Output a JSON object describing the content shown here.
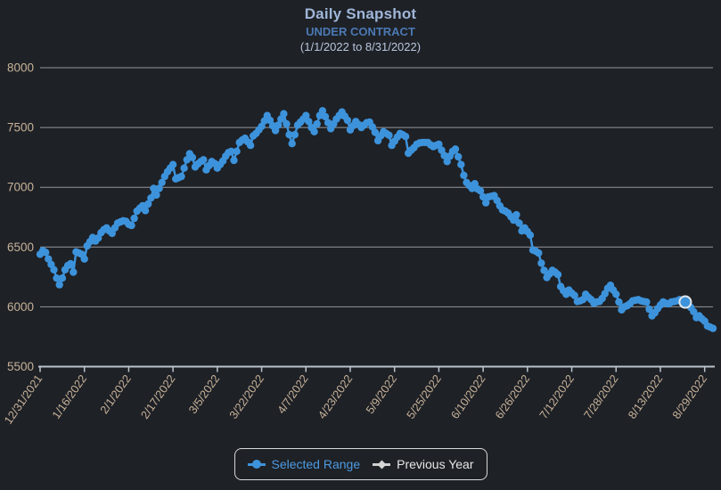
{
  "header": {
    "title": "Daily Snapshot",
    "subtitle": "UNDER CONTRACT",
    "date_range": "(1/1/2022 to 8/31/2022)"
  },
  "legend": {
    "items": [
      {
        "label": "Selected Range",
        "marker": "line-dot-icon",
        "color": "#3d93db"
      },
      {
        "label": "Previous Year",
        "marker": "line-diamond-icon",
        "color": "#d5d5d5"
      }
    ]
  },
  "colors": {
    "background": "#1e2126",
    "series_blue": "#3d93db",
    "grid_line": "#93989d",
    "axis_line": "#bac4cd",
    "tick_label": "#c7b299",
    "title_text": "#9fb6d9",
    "subtitle_text": "#4b79b4",
    "range_text": "#b9c6dc",
    "highlight_ring": "#e3e7ea"
  },
  "chart_data": {
    "type": "line",
    "title": "Daily Snapshot — UNDER CONTRACT",
    "xlabel": "",
    "ylabel": "",
    "ylim": [
      5500,
      8000
    ],
    "y_ticks": [
      5500,
      6000,
      6500,
      7000,
      7500,
      8000
    ],
    "grid": true,
    "legend_position": "bottom",
    "start_date": "12/31/2021",
    "x_tick_interval_days": 16,
    "x_tick_labels": [
      "12/31/2021",
      "1/16/2022",
      "2/1/2022",
      "2/17/2022",
      "3/5/2022",
      "3/22/2022",
      "4/7/2022",
      "4/23/2022",
      "5/9/2022",
      "5/25/2022",
      "6/10/2022",
      "6/26/2022",
      "7/12/2022",
      "7/28/2022",
      "8/13/2022",
      "8/29/2022"
    ],
    "highlight_point": {
      "day": 233,
      "value": 6040
    },
    "series": [
      {
        "name": "Selected Range",
        "color": "#3d93db",
        "points": [
          [
            0,
            6440
          ],
          [
            1,
            6470
          ],
          [
            2,
            6455
          ],
          [
            3,
            6400
          ],
          [
            4,
            6355
          ],
          [
            5,
            6310
          ],
          [
            6,
            6240
          ],
          [
            7,
            6185
          ],
          [
            8,
            6240
          ],
          [
            9,
            6310
          ],
          [
            10,
            6345
          ],
          [
            11,
            6360
          ],
          [
            12,
            6290
          ],
          [
            13,
            6460
          ],
          [
            14,
            6450
          ],
          [
            15,
            6440
          ],
          [
            16,
            6400
          ],
          [
            17,
            6510
          ],
          [
            18,
            6545
          ],
          [
            19,
            6580
          ],
          [
            20,
            6550
          ],
          [
            21,
            6575
          ],
          [
            22,
            6620
          ],
          [
            23,
            6645
          ],
          [
            24,
            6660
          ],
          [
            25,
            6635
          ],
          [
            26,
            6615
          ],
          [
            27,
            6660
          ],
          [
            28,
            6700
          ],
          [
            29,
            6710
          ],
          [
            30,
            6720
          ],
          [
            31,
            6715
          ],
          [
            32,
            6690
          ],
          [
            33,
            6680
          ],
          [
            34,
            6740
          ],
          [
            35,
            6800
          ],
          [
            36,
            6825
          ],
          [
            37,
            6845
          ],
          [
            38,
            6805
          ],
          [
            39,
            6860
          ],
          [
            40,
            6910
          ],
          [
            41,
            6990
          ],
          [
            42,
            6935
          ],
          [
            43,
            6990
          ],
          [
            44,
            7040
          ],
          [
            45,
            7090
          ],
          [
            46,
            7130
          ],
          [
            47,
            7160
          ],
          [
            48,
            7190
          ],
          [
            49,
            7070
          ],
          [
            50,
            7080
          ],
          [
            51,
            7090
          ],
          [
            52,
            7160
          ],
          [
            53,
            7230
          ],
          [
            54,
            7280
          ],
          [
            55,
            7250
          ],
          [
            56,
            7170
          ],
          [
            57,
            7195
          ],
          [
            58,
            7215
          ],
          [
            59,
            7230
          ],
          [
            60,
            7145
          ],
          [
            61,
            7180
          ],
          [
            62,
            7215
          ],
          [
            63,
            7200
          ],
          [
            64,
            7160
          ],
          [
            65,
            7190
          ],
          [
            66,
            7220
          ],
          [
            67,
            7260
          ],
          [
            68,
            7290
          ],
          [
            69,
            7300
          ],
          [
            70,
            7225
          ],
          [
            71,
            7300
          ],
          [
            72,
            7375
          ],
          [
            73,
            7395
          ],
          [
            74,
            7410
          ],
          [
            75,
            7380
          ],
          [
            76,
            7350
          ],
          [
            77,
            7430
          ],
          [
            78,
            7450
          ],
          [
            79,
            7480
          ],
          [
            80,
            7510
          ],
          [
            81,
            7555
          ],
          [
            82,
            7600
          ],
          [
            83,
            7560
          ],
          [
            84,
            7515
          ],
          [
            85,
            7475
          ],
          [
            86,
            7520
          ],
          [
            87,
            7570
          ],
          [
            88,
            7615
          ],
          [
            89,
            7530
          ],
          [
            90,
            7440
          ],
          [
            91,
            7365
          ],
          [
            92,
            7440
          ],
          [
            93,
            7520
          ],
          [
            94,
            7545
          ],
          [
            95,
            7570
          ],
          [
            96,
            7600
          ],
          [
            97,
            7550
          ],
          [
            98,
            7500
          ],
          [
            99,
            7465
          ],
          [
            100,
            7530
          ],
          [
            101,
            7600
          ],
          [
            102,
            7640
          ],
          [
            103,
            7590
          ],
          [
            104,
            7540
          ],
          [
            105,
            7490
          ],
          [
            106,
            7530
          ],
          [
            107,
            7570
          ],
          [
            108,
            7600
          ],
          [
            109,
            7630
          ],
          [
            110,
            7595
          ],
          [
            111,
            7560
          ],
          [
            112,
            7480
          ],
          [
            113,
            7515
          ],
          [
            114,
            7550
          ],
          [
            115,
            7525
          ],
          [
            116,
            7500
          ],
          [
            117,
            7520
          ],
          [
            118,
            7540
          ],
          [
            119,
            7545
          ],
          [
            120,
            7505
          ],
          [
            121,
            7460
          ],
          [
            122,
            7390
          ],
          [
            123,
            7430
          ],
          [
            124,
            7465
          ],
          [
            125,
            7450
          ],
          [
            126,
            7435
          ],
          [
            127,
            7350
          ],
          [
            128,
            7385
          ],
          [
            129,
            7420
          ],
          [
            130,
            7450
          ],
          [
            131,
            7440
          ],
          [
            132,
            7425
          ],
          [
            133,
            7285
          ],
          [
            134,
            7310
          ],
          [
            135,
            7330
          ],
          [
            136,
            7360
          ],
          [
            137,
            7370
          ],
          [
            138,
            7375
          ],
          [
            139,
            7375
          ],
          [
            140,
            7375
          ],
          [
            141,
            7355
          ],
          [
            142,
            7340
          ],
          [
            143,
            7350
          ],
          [
            144,
            7360
          ],
          [
            145,
            7310
          ],
          [
            146,
            7265
          ],
          [
            147,
            7215
          ],
          [
            148,
            7260
          ],
          [
            149,
            7300
          ],
          [
            150,
            7320
          ],
          [
            151,
            7255
          ],
          [
            152,
            7190
          ],
          [
            153,
            7100
          ],
          [
            154,
            7040
          ],
          [
            155,
            7015
          ],
          [
            156,
            6990
          ],
          [
            157,
            7030
          ],
          [
            158,
            6985
          ],
          [
            159,
            6970
          ],
          [
            160,
            6920
          ],
          [
            161,
            6870
          ],
          [
            162,
            6920
          ],
          [
            163,
            6925
          ],
          [
            164,
            6930
          ],
          [
            165,
            6890
          ],
          [
            166,
            6845
          ],
          [
            167,
            6810
          ],
          [
            168,
            6800
          ],
          [
            169,
            6785
          ],
          [
            170,
            6755
          ],
          [
            171,
            6725
          ],
          [
            172,
            6770
          ],
          [
            173,
            6700
          ],
          [
            174,
            6635
          ],
          [
            175,
            6660
          ],
          [
            176,
            6630
          ],
          [
            177,
            6600
          ],
          [
            178,
            6475
          ],
          [
            179,
            6465
          ],
          [
            180,
            6450
          ],
          [
            181,
            6365
          ],
          [
            182,
            6305
          ],
          [
            183,
            6245
          ],
          [
            184,
            6275
          ],
          [
            185,
            6305
          ],
          [
            186,
            6290
          ],
          [
            187,
            6270
          ],
          [
            188,
            6170
          ],
          [
            189,
            6135
          ],
          [
            190,
            6105
          ],
          [
            191,
            6140
          ],
          [
            192,
            6115
          ],
          [
            193,
            6095
          ],
          [
            194,
            6045
          ],
          [
            195,
            6050
          ],
          [
            196,
            6060
          ],
          [
            197,
            6105
          ],
          [
            198,
            6080
          ],
          [
            199,
            6060
          ],
          [
            200,
            6030
          ],
          [
            201,
            6040
          ],
          [
            202,
            6045
          ],
          [
            203,
            6070
          ],
          [
            204,
            6110
          ],
          [
            205,
            6155
          ],
          [
            206,
            6180
          ],
          [
            207,
            6140
          ],
          [
            208,
            6105
          ],
          [
            209,
            6040
          ],
          [
            210,
            5975
          ],
          [
            211,
            6000
          ],
          [
            212,
            6010
          ],
          [
            213,
            6025
          ],
          [
            214,
            6050
          ],
          [
            215,
            6055
          ],
          [
            216,
            6060
          ],
          [
            217,
            6050
          ],
          [
            218,
            6045
          ],
          [
            219,
            6040
          ],
          [
            220,
            5980
          ],
          [
            221,
            5925
          ],
          [
            222,
            5950
          ],
          [
            223,
            5985
          ],
          [
            224,
            6015
          ],
          [
            225,
            6040
          ],
          [
            226,
            6030
          ],
          [
            227,
            6025
          ],
          [
            228,
            6040
          ],
          [
            229,
            6045
          ],
          [
            230,
            6050
          ],
          [
            231,
            6060
          ],
          [
            232,
            6050
          ],
          [
            233,
            6040
          ],
          [
            234,
            6030
          ],
          [
            235,
            5995
          ],
          [
            236,
            5960
          ],
          [
            237,
            5910
          ],
          [
            238,
            5925
          ],
          [
            239,
            5900
          ],
          [
            240,
            5880
          ],
          [
            241,
            5840
          ],
          [
            242,
            5830
          ],
          [
            243,
            5820
          ]
        ]
      },
      {
        "name": "Previous Year",
        "color": "#d5d5d5",
        "points": []
      }
    ]
  }
}
